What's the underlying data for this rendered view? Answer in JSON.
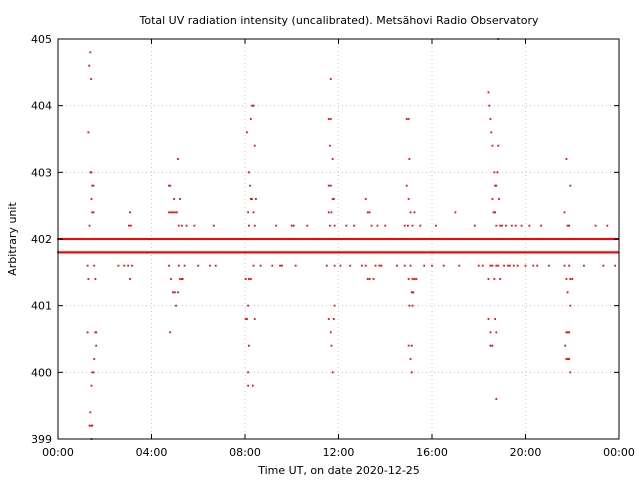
{
  "chart_data": {
    "type": "scatter",
    "title": "Total UV radiation intensity (uncalibrated). Metsähovi Radio Observatory",
    "xlabel": "Time UT, on date 2020-12-25",
    "ylabel": "Arbitrary unit",
    "x_tick_labels": [
      "00:00",
      "04:00",
      "08:00",
      "12:00",
      "16:00",
      "20:00",
      "00:00"
    ],
    "y_tick_labels": [
      "399",
      "400",
      "401",
      "402",
      "403",
      "404",
      "405"
    ],
    "xlim": [
      "00:00",
      "24:00"
    ],
    "ylim": [
      399,
      405
    ],
    "grid": true,
    "marker_color": "#ff0000",
    "baseline_levels": [
      401.8,
      402.0
    ],
    "series": [
      {
        "points": [
          [
            "01:18",
            403.6
          ],
          [
            "01:20",
            404.6
          ],
          [
            "01:23",
            404.8
          ],
          [
            "01:25",
            404.4
          ],
          [
            "01:23",
            403.0
          ],
          [
            "01:26",
            403.0
          ],
          [
            "01:28",
            402.8
          ],
          [
            "01:31",
            402.8
          ],
          [
            "01:26",
            402.6
          ],
          [
            "01:28",
            402.4
          ],
          [
            "01:31",
            402.4
          ],
          [
            "01:21",
            402.2
          ],
          [
            "01:16",
            401.6
          ],
          [
            "01:18",
            401.4
          ],
          [
            "01:33",
            401.6
          ],
          [
            "01:36",
            401.4
          ],
          [
            "01:16",
            400.6
          ],
          [
            "01:36",
            400.6
          ],
          [
            "01:38",
            400.6
          ],
          [
            "01:38",
            400.4
          ],
          [
            "01:33",
            400.2
          ],
          [
            "01:28",
            400.0
          ],
          [
            "01:31",
            400.0
          ],
          [
            "01:26",
            399.8
          ],
          [
            "01:23",
            399.4
          ],
          [
            "01:21",
            399.2
          ],
          [
            "01:26",
            399.2
          ],
          [
            "01:28",
            399.2
          ],
          [
            "01:26",
            399.0
          ],
          [
            "03:05",
            402.4
          ],
          [
            "03:02",
            402.2
          ],
          [
            "03:07",
            402.2
          ],
          [
            "03:00",
            401.6
          ],
          [
            "03:05",
            401.4
          ],
          [
            "03:10",
            401.6
          ],
          [
            "02:35",
            401.6
          ],
          [
            "02:50",
            401.6
          ],
          [
            "04:45",
            402.8
          ],
          [
            "04:48",
            402.8
          ],
          [
            "04:45",
            402.4
          ],
          [
            "04:50",
            402.4
          ],
          [
            "04:55",
            402.4
          ],
          [
            "05:00",
            402.4
          ],
          [
            "05:05",
            402.4
          ],
          [
            "05:08",
            403.2
          ],
          [
            "04:58",
            402.6
          ],
          [
            "05:13",
            402.6
          ],
          [
            "05:10",
            402.2
          ],
          [
            "05:18",
            402.2
          ],
          [
            "04:45",
            401.6
          ],
          [
            "04:50",
            401.4
          ],
          [
            "04:55",
            401.2
          ],
          [
            "05:00",
            401.2
          ],
          [
            "05:03",
            401.0
          ],
          [
            "05:08",
            401.2
          ],
          [
            "05:10",
            401.6
          ],
          [
            "05:13",
            401.4
          ],
          [
            "05:18",
            401.4
          ],
          [
            "05:20",
            401.4
          ],
          [
            "05:25",
            401.6
          ],
          [
            "04:48",
            400.6
          ],
          [
            "05:30",
            402.2
          ],
          [
            "05:40",
            402.0
          ],
          [
            "05:50",
            402.2
          ],
          [
            "06:00",
            401.6
          ],
          [
            "06:30",
            401.6
          ],
          [
            "06:40",
            402.2
          ],
          [
            "06:45",
            401.6
          ],
          [
            "08:05",
            403.6
          ],
          [
            "08:10",
            403.0
          ],
          [
            "08:13",
            402.8
          ],
          [
            "08:15",
            403.8
          ],
          [
            "08:18",
            404.0
          ],
          [
            "08:22",
            404.0
          ],
          [
            "08:25",
            403.4
          ],
          [
            "08:08",
            402.4
          ],
          [
            "08:15",
            402.6
          ],
          [
            "08:18",
            402.6
          ],
          [
            "08:22",
            402.4
          ],
          [
            "08:28",
            402.6
          ],
          [
            "08:10",
            402.2
          ],
          [
            "08:25",
            402.2
          ],
          [
            "08:02",
            401.4
          ],
          [
            "08:10",
            401.4
          ],
          [
            "08:15",
            401.4
          ],
          [
            "08:22",
            401.6
          ],
          [
            "08:02",
            400.8
          ],
          [
            "08:05",
            400.8
          ],
          [
            "08:08",
            401.0
          ],
          [
            "08:10",
            400.4
          ],
          [
            "08:08",
            400.0
          ],
          [
            "08:08",
            399.8
          ],
          [
            "08:20",
            399.8
          ],
          [
            "08:25",
            400.8
          ],
          [
            "08:40",
            401.6
          ],
          [
            "09:10",
            401.6
          ],
          [
            "09:20",
            402.2
          ],
          [
            "09:30",
            401.6
          ],
          [
            "09:35",
            401.6
          ],
          [
            "10:00",
            402.2
          ],
          [
            "10:05",
            402.2
          ],
          [
            "10:10",
            401.6
          ],
          [
            "10:40",
            402.2
          ],
          [
            "11:40",
            404.4
          ],
          [
            "11:35",
            403.8
          ],
          [
            "11:40",
            403.8
          ],
          [
            "11:38",
            403.4
          ],
          [
            "11:45",
            403.2
          ],
          [
            "11:35",
            402.8
          ],
          [
            "11:40",
            402.8
          ],
          [
            "11:35",
            402.4
          ],
          [
            "11:42",
            402.4
          ],
          [
            "11:45",
            402.6
          ],
          [
            "11:48",
            402.6
          ],
          [
            "11:50",
            402.2
          ],
          [
            "11:38",
            402.2
          ],
          [
            "11:30",
            401.6
          ],
          [
            "11:50",
            401.6
          ],
          [
            "11:35",
            400.8
          ],
          [
            "11:40",
            400.6
          ],
          [
            "11:42",
            400.4
          ],
          [
            "11:48",
            400.8
          ],
          [
            "11:50",
            401.0
          ],
          [
            "11:45",
            400.0
          ],
          [
            "12:05",
            401.6
          ],
          [
            "12:20",
            402.2
          ],
          [
            "12:30",
            401.6
          ],
          [
            "12:40",
            402.2
          ],
          [
            "13:00",
            401.6
          ],
          [
            "13:10",
            402.6
          ],
          [
            "13:15",
            402.4
          ],
          [
            "13:20",
            402.4
          ],
          [
            "13:25",
            402.2
          ],
          [
            "13:10",
            401.6
          ],
          [
            "13:15",
            401.4
          ],
          [
            "13:20",
            401.4
          ],
          [
            "13:30",
            401.4
          ],
          [
            "13:35",
            401.6
          ],
          [
            "13:40",
            402.2
          ],
          [
            "13:45",
            401.6
          ],
          [
            "13:50",
            401.6
          ],
          [
            "14:00",
            402.2
          ],
          [
            "14:30",
            401.6
          ],
          [
            "14:55",
            403.8
          ],
          [
            "15:00",
            403.8
          ],
          [
            "15:02",
            403.2
          ],
          [
            "14:55",
            402.8
          ],
          [
            "15:00",
            402.6
          ],
          [
            "15:05",
            402.4
          ],
          [
            "14:50",
            402.2
          ],
          [
            "14:58",
            402.2
          ],
          [
            "15:10",
            402.2
          ],
          [
            "15:15",
            402.4
          ],
          [
            "14:50",
            401.6
          ],
          [
            "15:00",
            401.4
          ],
          [
            "15:05",
            401.6
          ],
          [
            "15:10",
            401.4
          ],
          [
            "15:15",
            401.4
          ],
          [
            "15:20",
            401.4
          ],
          [
            "15:08",
            401.2
          ],
          [
            "15:12",
            401.2
          ],
          [
            "15:02",
            401.0
          ],
          [
            "15:10",
            401.0
          ],
          [
            "15:00",
            400.4
          ],
          [
            "15:08",
            400.4
          ],
          [
            "15:05",
            400.2
          ],
          [
            "15:08",
            400.0
          ],
          [
            "15:30",
            402.2
          ],
          [
            "15:40",
            401.6
          ],
          [
            "16:00",
            401.6
          ],
          [
            "16:10",
            402.2
          ],
          [
            "16:30",
            401.6
          ],
          [
            "17:00",
            402.4
          ],
          [
            "17:10",
            401.6
          ],
          [
            "17:50",
            402.2
          ],
          [
            "18:00",
            401.6
          ],
          [
            "18:10",
            401.6
          ],
          [
            "18:25",
            404.2
          ],
          [
            "18:27",
            404.0
          ],
          [
            "18:30",
            403.8
          ],
          [
            "18:32",
            403.6
          ],
          [
            "18:35",
            403.4
          ],
          [
            "18:40",
            403.0
          ],
          [
            "18:42",
            402.8
          ],
          [
            "18:45",
            402.8
          ],
          [
            "18:48",
            403.0
          ],
          [
            "18:50",
            403.4
          ],
          [
            "18:35",
            402.6
          ],
          [
            "18:38",
            402.4
          ],
          [
            "18:42",
            402.4
          ],
          [
            "18:45",
            402.2
          ],
          [
            "18:52",
            402.6
          ],
          [
            "18:55",
            402.2
          ],
          [
            "18:25",
            401.4
          ],
          [
            "18:30",
            401.6
          ],
          [
            "18:35",
            401.6
          ],
          [
            "18:40",
            401.4
          ],
          [
            "18:45",
            401.6
          ],
          [
            "18:50",
            401.6
          ],
          [
            "18:55",
            401.4
          ],
          [
            "18:25",
            400.8
          ],
          [
            "18:30",
            400.6
          ],
          [
            "18:30",
            400.4
          ],
          [
            "18:35",
            400.4
          ],
          [
            "18:45",
            400.6
          ],
          [
            "18:42",
            400.8
          ],
          [
            "18:45",
            399.6
          ],
          [
            "18:50",
            405.0
          ],
          [
            "19:00",
            402.2
          ],
          [
            "19:05",
            401.6
          ],
          [
            "19:10",
            402.2
          ],
          [
            "19:15",
            401.6
          ],
          [
            "19:20",
            401.6
          ],
          [
            "19:25",
            402.2
          ],
          [
            "19:30",
            401.6
          ],
          [
            "19:35",
            402.2
          ],
          [
            "19:40",
            401.6
          ],
          [
            "19:50",
            402.2
          ],
          [
            "20:00",
            401.6
          ],
          [
            "20:10",
            402.2
          ],
          [
            "20:20",
            401.6
          ],
          [
            "20:30",
            401.6
          ],
          [
            "20:40",
            402.2
          ],
          [
            "21:00",
            401.6
          ],
          [
            "21:40",
            402.4
          ],
          [
            "21:45",
            403.2
          ],
          [
            "21:48",
            402.2
          ],
          [
            "21:52",
            402.2
          ],
          [
            "21:55",
            402.8
          ],
          [
            "21:40",
            401.6
          ],
          [
            "21:45",
            401.4
          ],
          [
            "21:48",
            401.2
          ],
          [
            "21:52",
            401.6
          ],
          [
            "21:55",
            401.4
          ],
          [
            "22:00",
            401.4
          ],
          [
            "21:55",
            401.0
          ],
          [
            "21:45",
            400.6
          ],
          [
            "21:48",
            400.6
          ],
          [
            "21:52",
            400.6
          ],
          [
            "21:42",
            400.4
          ],
          [
            "21:45",
            400.2
          ],
          [
            "21:48",
            400.2
          ],
          [
            "21:52",
            400.2
          ],
          [
            "21:55",
            400.0
          ],
          [
            "22:30",
            401.6
          ],
          [
            "23:00",
            402.2
          ],
          [
            "23:20",
            401.6
          ],
          [
            "23:30",
            402.2
          ],
          [
            "23:50",
            401.6
          ]
        ]
      }
    ]
  }
}
